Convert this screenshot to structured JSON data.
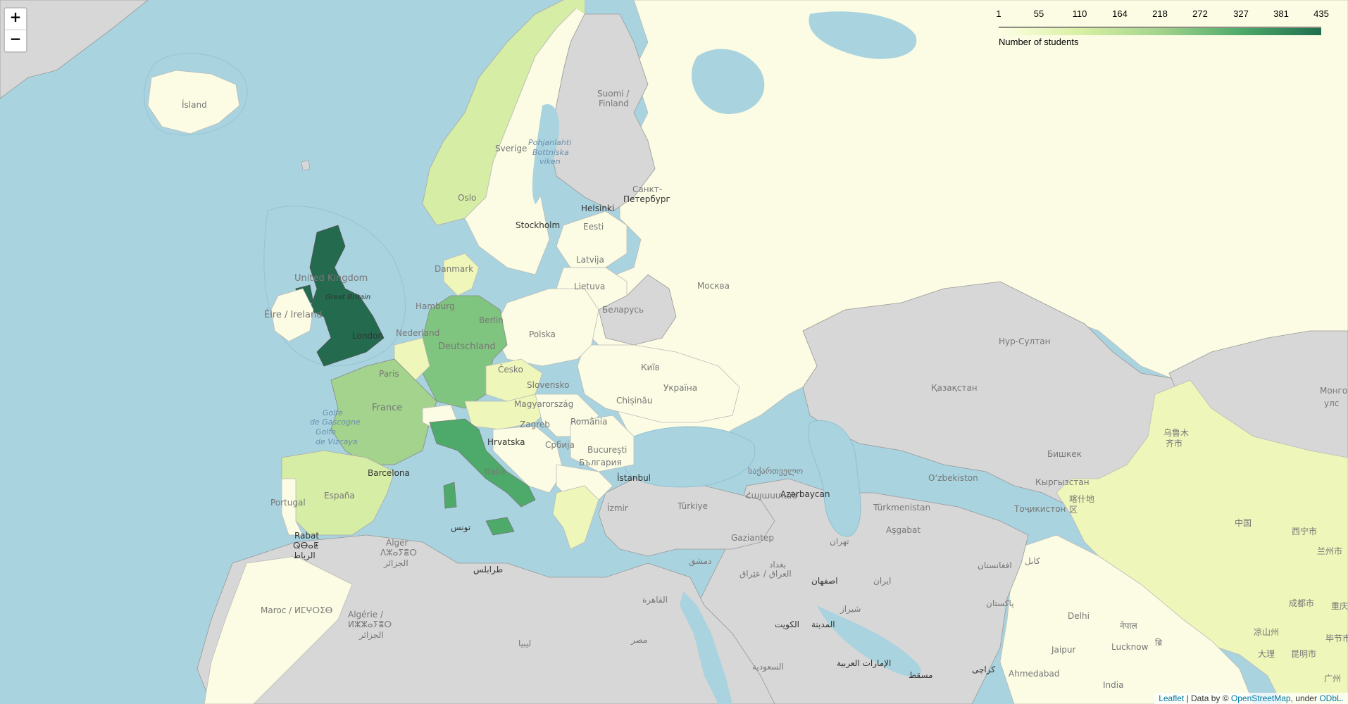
{
  "zoom": {
    "in_label": "+",
    "out_label": "−"
  },
  "legend": {
    "ticks": [
      "1",
      "55",
      "110",
      "164",
      "218",
      "272",
      "327",
      "381",
      "435"
    ],
    "caption": "Number of students",
    "color_low": "#ffffe5",
    "color_high": "#1f6e4f"
  },
  "attribution": {
    "leaflet": "Leaflet",
    "sep": " | Data by © ",
    "osm": "OpenStreetMap",
    "under": ", under ",
    "license": "ODbL."
  },
  "colors": {
    "water": "#a9d3df",
    "no_data": "#d7d7d7",
    "level_very_low": "#fbfce3",
    "level_low": "#eef6b9",
    "level_mid_low": "#d6eda5",
    "level_mid": "#a3d38d",
    "level_mid_high": "#80c57f",
    "level_high": "#4eaa6a",
    "level_max": "#236a4f"
  },
  "labels": {
    "island": "Ísland",
    "suomi": "Suomi /",
    "finland": "Finland",
    "sverige": "Sverige",
    "botnia1": "Pohjanlahti",
    "botnia2": "Bottniska",
    "botnia3": "viken",
    "oslo": "Oslo",
    "helsinki": "Helsinki",
    "stockholm": "Stockholm",
    "eesti": "Eesti",
    "spb1": "Санкт-",
    "spb2": "Петербург",
    "latvija": "Latvija",
    "danmark": "Danmark",
    "lietuva": "Lietuva",
    "moskva": "Москва",
    "uk": "United Kingdom",
    "gb": "Great Britain",
    "eire": "Éire / Ireland",
    "hamburg": "Hamburg",
    "berlin": "Berlin",
    "belarus": "Беларусь",
    "polska": "Polska",
    "london": "London",
    "nederland": "Nederland",
    "deutschland": "Deutschland",
    "paris": "Paris",
    "cesko": "Česko",
    "kyiv": "Київ",
    "ukraina": "Україна",
    "slovensko": "Slovensko",
    "magyar": "Magyarország",
    "chisinau": "Chișinău",
    "france": "France",
    "golfe1": "Golfe",
    "golfe2": "de Gascogne",
    "golfe3": "Golfo",
    "golfe4": "de Vizcaya",
    "zagreb": "Zagreb",
    "romania": "România",
    "hrvatska": "Hrvatska",
    "srbija": "Србија",
    "bucuresti": "București",
    "italia": "Italia",
    "bulgaria": "България",
    "barcelona": "Barcelona",
    "espana": "España",
    "portugal": "Portugal",
    "istanbul": "İstanbul",
    "turkiye": "Türkiye",
    "izmir": "İzmir",
    "tunis": "تونس",
    "alger1": "Alger",
    "alger2": "ⴷⵣⴰⵢⴻⵔ",
    "alger3": "الجزائر",
    "rabat1": "Rabat",
    "rabat2": "ⵕⴱⴰⵟ",
    "rabat3": "الرباط",
    "tarabulus": "طرابلس",
    "maroc": "Maroc / ⵍⵎⵖⵔⵉⴱ",
    "algerie1": "Algérie /",
    "algerie2": "ⵍⵣⵣⴰⵢⴻⵔ",
    "algerie3": "الجزائر",
    "libya": "ليبيا",
    "misr": "مصر",
    "qahira": "القاهرة",
    "saudi": "السعودية",
    "iraq": "العراق / عێراق",
    "baghdad": "بغداد",
    "iran": "ایران",
    "isfahan": "اصفهان",
    "shiraz": "شیراز",
    "tehran": "تهران",
    "kuwait": "الكويت",
    "madinah": "المدينة",
    "uae": "الإمارات العربية",
    "muscat": "مسقط",
    "karachi": "کراچی",
    "pakistan": "پاکستان",
    "afghanistan": "افغانستان",
    "kabul": "کابل",
    "ashgabat": "Aşgabat",
    "turkmenistan": "Türkmenistan",
    "uzbekistan": "Oʻzbekiston",
    "tojikiston": "Тоҷикистон",
    "kyrgyz": "Кыргызстан",
    "bishkek": "Бишкек",
    "kazakhstan": "Қазақстан",
    "nursultan": "Нур-Султан",
    "azerbaycan": "Azərbaycan",
    "sakartvelo": "საქართველო",
    "hayastan": "Հայաստան",
    "urumqi1": "乌鲁木",
    "urumqi2": "齐市",
    "kashgar1": "喀什地",
    "kashgar2": "区",
    "zhongguo": "中国",
    "xining": "西宁市",
    "lanzhou": "兰州市",
    "chengdu": "成都市",
    "chongqing": "重庆",
    "kunming": "昆明市",
    "dali": "大理",
    "mongol1": "Монго",
    "mongol2": "улс",
    "delhi": "Delhi",
    "jaipur": "Jaipur",
    "lucknow": "Lucknow",
    "ahmedabad": "Ahmedabad",
    "india": "India",
    "nepal": "नेपाल",
    "bhutan": "ब्रि",
    "bijie": "毕节市",
    "liangshan": "凉山州",
    "guangzhou": "广州",
    "gaziantep": "Gaziantep",
    "sham": "دمشق"
  }
}
